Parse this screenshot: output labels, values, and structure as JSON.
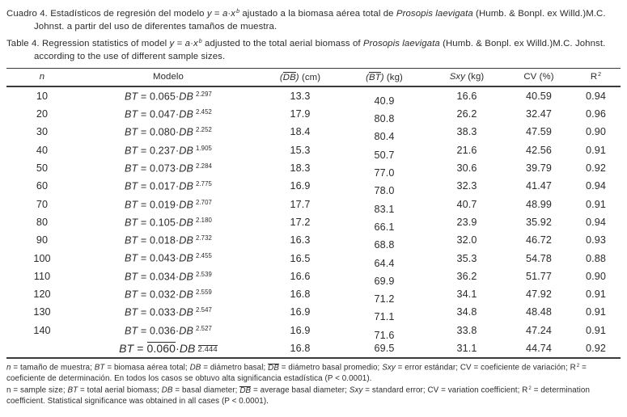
{
  "page": {
    "background": "#ffffff",
    "text_color": "#2b2b2b"
  },
  "captions": {
    "es_segments": [
      {
        "t": "Cuadro 4. Estadísticos de regresión del modelo "
      },
      {
        "t": "y",
        "i": true
      },
      {
        "t": " = "
      },
      {
        "t": "a",
        "i": true
      },
      {
        "t": "·"
      },
      {
        "t": "x",
        "i": true
      },
      {
        "t": "b",
        "i": true,
        "sup": true
      },
      {
        "t": " ajustado a la biomasa aérea total de "
      },
      {
        "t": "Prosopis laevigata",
        "i": true
      },
      {
        "t": " (Humb. & Bonpl. ex Willd.)M.C. Johnst. a partir del uso de diferentes tamaños de muestra."
      }
    ],
    "en_segments": [
      {
        "t": "Table 4. Regression statistics of model "
      },
      {
        "t": "y",
        "i": true
      },
      {
        "t": " = "
      },
      {
        "t": "a",
        "i": true
      },
      {
        "t": "·"
      },
      {
        "t": "x",
        "i": true
      },
      {
        "t": "b",
        "i": true,
        "sup": true
      },
      {
        "t": " adjusted to the total aerial biomass of "
      },
      {
        "t": "Prosopis laevigata",
        "i": true
      },
      {
        "t": " (Humb. & Bonpl. ex Willd.)M.C. Johnst. according to the use of different sample sizes."
      }
    ]
  },
  "table": {
    "model_lhs": "BT",
    "model_var": "DB",
    "equals": "=",
    "columns": [
      {
        "key": "n",
        "label_segs": [
          {
            "t": "n",
            "i": true
          }
        ]
      },
      {
        "key": "model",
        "label_segs": [
          {
            "t": "Modelo"
          }
        ]
      },
      {
        "key": "db",
        "label_segs": [
          {
            "t": "(",
            "i": true
          },
          {
            "t": "DB",
            "i": true,
            "ov": true
          },
          {
            "t": ")",
            "i": true
          },
          {
            "t": " (cm)"
          }
        ]
      },
      {
        "key": "bt",
        "label_segs": [
          {
            "t": "(",
            "i": true
          },
          {
            "t": "BT",
            "i": true,
            "ov": true
          },
          {
            "t": ")",
            "i": true
          },
          {
            "t": " (kg)"
          }
        ]
      },
      {
        "key": "sxy",
        "label_segs": [
          {
            "t": "Sxy",
            "i": true
          },
          {
            "t": " (kg)"
          }
        ]
      },
      {
        "key": "cv",
        "label_segs": [
          {
            "t": "CV (%)"
          }
        ]
      },
      {
        "key": "r2",
        "label_segs": [
          {
            "t": "R"
          },
          {
            "t": "2",
            "sup": true
          }
        ]
      }
    ],
    "rows": [
      {
        "n": "10",
        "coef": "0.065",
        "exp": "2.297",
        "db": "13.3",
        "bt": "40.9",
        "sxy": "16.6",
        "cv": "40.59",
        "r2": "0.94"
      },
      {
        "n": "20",
        "coef": "0.047",
        "exp": "2.452",
        "db": "17.9",
        "bt": "80.8",
        "sxy": "26.2",
        "cv": "32.47",
        "r2": "0.96"
      },
      {
        "n": "30",
        "coef": "0.080",
        "exp": "2.252",
        "db": "18.4",
        "bt": "80.4",
        "sxy": "38.3",
        "cv": "47.59",
        "r2": "0.90"
      },
      {
        "n": "40",
        "coef": "0.237",
        "exp": "1.905",
        "db": "15.3",
        "bt": "50.7",
        "sxy": "21.6",
        "cv": "42.56",
        "r2": "0.91"
      },
      {
        "n": "50",
        "coef": "0.073",
        "exp": "2.284",
        "db": "18.3",
        "bt": "77.0",
        "sxy": "30.6",
        "cv": "39.79",
        "r2": "0.92"
      },
      {
        "n": "60",
        "coef": "0.017",
        "exp": "2.775",
        "db": "16.9",
        "bt": "78.0",
        "sxy": "32.3",
        "cv": "41.47",
        "r2": "0.94"
      },
      {
        "n": "70",
        "coef": "0.019",
        "exp": "2.707",
        "db": "17.7",
        "bt": "83.1",
        "sxy": "40.7",
        "cv": "48.99",
        "r2": "0.91"
      },
      {
        "n": "80",
        "coef": "0.105",
        "exp": "2.180",
        "db": "17.2",
        "bt": "66.1",
        "sxy": "23.9",
        "cv": "35.92",
        "r2": "0.94"
      },
      {
        "n": "90",
        "coef": "0.018",
        "exp": "2.732",
        "db": "16.3",
        "bt": "68.8",
        "sxy": "32.0",
        "cv": "46.72",
        "r2": "0.93"
      },
      {
        "n": "100",
        "coef": "0.043",
        "exp": "2.455",
        "db": "16.5",
        "bt": "64.4",
        "sxy": "35.3",
        "cv": "54.78",
        "r2": "0.88"
      },
      {
        "n": "110",
        "coef": "0.034",
        "exp": "2.539",
        "db": "16.6",
        "bt": "69.9",
        "sxy": "36.2",
        "cv": "51.77",
        "r2": "0.90"
      },
      {
        "n": "120",
        "coef": "0.032",
        "exp": "2.559",
        "db": "16.8",
        "bt": "71.2",
        "sxy": "34.1",
        "cv": "47.92",
        "r2": "0.91"
      },
      {
        "n": "130",
        "coef": "0.033",
        "exp": "2.547",
        "db": "16.9",
        "bt": "71.1",
        "sxy": "34.8",
        "cv": "48.48",
        "r2": "0.91"
      },
      {
        "n": "140",
        "coef": "0.036",
        "exp": "2.527",
        "db": "16.9",
        "bt": "71.6",
        "sxy": "33.8",
        "cv": "47.24",
        "r2": "0.91"
      },
      {
        "n": "",
        "coef": "0.060",
        "exp": "2.444",
        "db": "16.8",
        "bt": "69.5",
        "sxy": "31.1",
        "cv": "44.74",
        "r2": "0.92",
        "avg": true
      }
    ]
  },
  "footnotes": {
    "es_segments": [
      {
        "t": "n",
        "i": true
      },
      {
        "t": " = tamaño de muestra; "
      },
      {
        "t": "BT",
        "i": true
      },
      {
        "t": " = biomasa aérea total; "
      },
      {
        "t": "DB",
        "i": true
      },
      {
        "t": " = diámetro basal; "
      },
      {
        "t": "DB",
        "i": true,
        "ov": true
      },
      {
        "t": " = diámetro basal promedio; "
      },
      {
        "t": "Sxy",
        "i": true
      },
      {
        "t": " = error estándar; CV = coeficiente de variación; R"
      },
      {
        "t": "2",
        "sup": true
      },
      {
        "t": " = coeficiente de determinación. En todos los casos se obtuvo alta significancia estadística (P < 0.0001)."
      }
    ],
    "en_segments": [
      {
        "t": "n = sample size; "
      },
      {
        "t": "BT",
        "i": true
      },
      {
        "t": " = total aerial biomass; "
      },
      {
        "t": "DB",
        "i": true
      },
      {
        "t": " = basal diameter; "
      },
      {
        "t": "DB",
        "i": true,
        "ov": true
      },
      {
        "t": " = average basal diameter; "
      },
      {
        "t": "Sxy",
        "i": true
      },
      {
        "t": " = standard error; CV = variation coefficient; R"
      },
      {
        "t": "2",
        "sup": true
      },
      {
        "t": " = determination coefficient. Statistical significance was obtained in all cases (P < 0.0001)."
      }
    ]
  }
}
